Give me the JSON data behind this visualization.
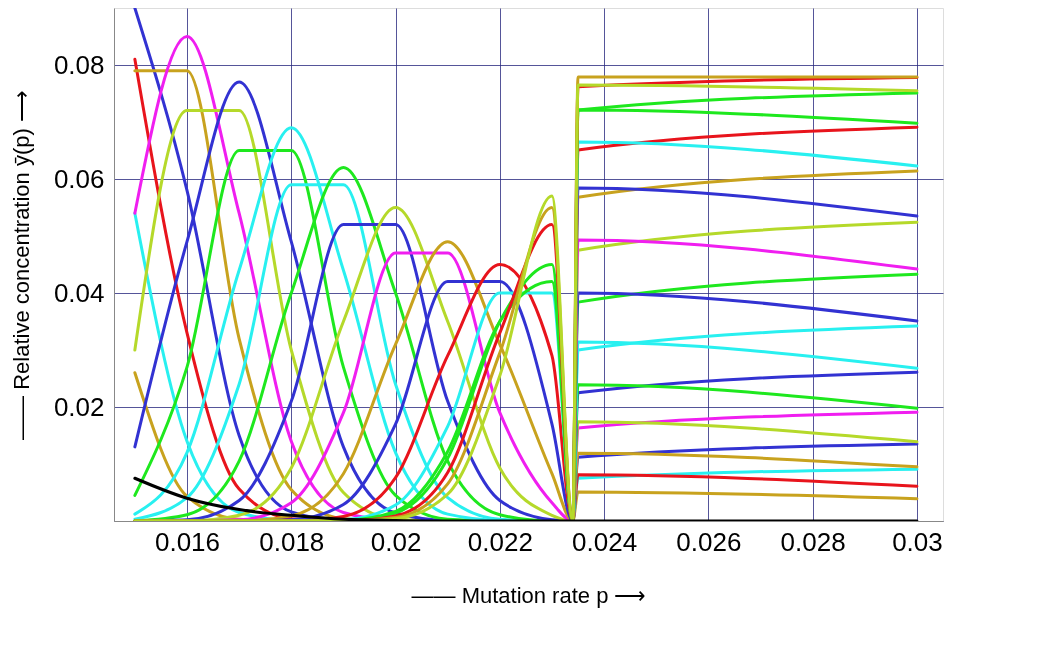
{
  "chart_data": {
    "type": "line",
    "xlabel": "—— Mutation rate  p  ⟶",
    "ylabel": "—— Relative concentration  ȳ(p)  ⟶",
    "x": [
      0.015,
      0.016,
      0.017,
      0.018,
      0.019,
      0.02,
      0.021,
      0.022,
      0.023,
      0.0234,
      0.0235,
      0.03
    ],
    "xlim": [
      0.0146,
      0.0305
    ],
    "xticks": [
      0.016,
      0.018,
      0.02,
      0.022,
      0.024,
      0.026,
      0.028,
      0.03
    ],
    "ylim": [
      0,
      0.09
    ],
    "yticks": [
      {
        "value": 0,
        "label": null
      },
      0.02,
      0.04,
      0.06,
      0.08
    ],
    "grid": true,
    "legend": false,
    "series": [
      {
        "color": "#c8a21e",
        "values": [
          0.026,
          0.0043,
          0.0003,
          0,
          0,
          0,
          0,
          0,
          0,
          0,
          0.0051,
          0.0039
        ]
      },
      {
        "color": "#28f0f0",
        "values": [
          0.054,
          0.014,
          0.0015,
          0.0001,
          0,
          0,
          0,
          0,
          0,
          0,
          0.0075,
          0.0091
        ]
      },
      {
        "color": "#e8141c",
        "values": [
          0.081,
          0.033,
          0.0056,
          0.0004,
          0,
          0,
          0,
          0,
          0,
          0,
          0.0081,
          0.0061
        ]
      },
      {
        "color": "#3232d2",
        "values": [
          0.09,
          0.058,
          0.015,
          0.0016,
          0.0001,
          0,
          0,
          0,
          0,
          0,
          0.0112,
          0.0135
        ]
      },
      {
        "color": "#c8a21e",
        "values": [
          0.079,
          0.079,
          0.032,
          0.0055,
          0.0004,
          0,
          0,
          0,
          0,
          0,
          0.0119,
          0.0095
        ]
      },
      {
        "color": "#f01ef0",
        "values": [
          0.054,
          0.085,
          0.054,
          0.014,
          0.0015,
          0.0001,
          0,
          0,
          0,
          0,
          0.0163,
          0.0191
        ]
      },
      {
        "color": "#b5d92a",
        "values": [
          0.03,
          0.072,
          0.072,
          0.03,
          0.005,
          0.0003,
          0,
          0,
          0,
          0,
          0.0174,
          0.0139
        ]
      },
      {
        "color": "#3232d2",
        "values": [
          0.013,
          0.049,
          0.077,
          0.049,
          0.013,
          0.0014,
          0.0001,
          0,
          0,
          0,
          0.0225,
          0.0261
        ]
      },
      {
        "color": "#1ee81e",
        "values": [
          0.0045,
          0.027,
          0.065,
          0.065,
          0.027,
          0.0045,
          0.0003,
          0,
          0,
          0,
          0.0239,
          0.0198
        ]
      },
      {
        "color": "#28f0f0",
        "values": [
          0.0012,
          0.012,
          0.044,
          0.069,
          0.044,
          0.012,
          0.0012,
          0.0001,
          0,
          0,
          0.03,
          0.0342
        ]
      },
      {
        "color": "#28f0f0",
        "values": [
          0.0003,
          0.0041,
          0.024,
          0.059,
          0.059,
          0.024,
          0.0041,
          0.0003,
          0,
          0,
          0.0314,
          0.0268
        ]
      },
      {
        "color": "#1ee81e",
        "values": [
          0,
          0.0011,
          0.0105,
          0.04,
          0.062,
          0.04,
          0.0105,
          0.0011,
          0,
          0,
          0.0384,
          0.0433
        ]
      },
      {
        "color": "#3232d2",
        "values": [
          0,
          0.0002,
          0.0036,
          0.021,
          0.052,
          0.052,
          0.021,
          0.0036,
          0.0002,
          0,
          0.04,
          0.0351
        ]
      },
      {
        "color": "#b5d92a",
        "values": [
          0,
          0,
          0.001,
          0.0093,
          0.035,
          0.055,
          0.035,
          0.0093,
          0.001,
          0,
          0.0475,
          0.0524
        ]
      },
      {
        "color": "#f01ef0",
        "values": [
          0,
          0,
          0.0002,
          0.0032,
          0.019,
          0.047,
          0.047,
          0.019,
          0.0032,
          0,
          0.0493,
          0.0442
        ]
      },
      {
        "color": "#c8a21e",
        "values": [
          0,
          0,
          0,
          0.0009,
          0.0083,
          0.031,
          0.049,
          0.031,
          0.0083,
          0,
          0.0568,
          0.0614
        ]
      },
      {
        "color": "#3232d2",
        "values": [
          0,
          0,
          0,
          0.0002,
          0.0029,
          0.017,
          0.042,
          0.042,
          0.017,
          0,
          0.0584,
          0.0535
        ]
      },
      {
        "color": "#e8141c",
        "values": [
          0,
          0,
          0,
          0,
          0.0008,
          0.0076,
          0.029,
          0.045,
          0.029,
          0,
          0.0651,
          0.0691
        ]
      },
      {
        "color": "#28f0f0",
        "values": [
          0,
          0,
          0,
          0,
          0.0002,
          0.0028,
          0.0166,
          0.04,
          0.04,
          0,
          0.0665,
          0.0623
        ]
      },
      {
        "color": "#1ee81e",
        "values": [
          0,
          0,
          0,
          0,
          0.0001,
          0.0017,
          0.0122,
          0.035,
          0.042,
          0,
          0.0721,
          0.0751
        ]
      },
      {
        "color": "#1ee81e",
        "values": [
          0,
          0,
          0,
          0,
          0,
          0.0014,
          0.011,
          0.035,
          0.045,
          0,
          0.0721,
          0.0698
        ]
      },
      {
        "color": "#e8141c",
        "values": [
          0,
          0,
          0,
          0,
          0,
          0.0009,
          0.0085,
          0.033,
          0.052,
          0,
          0.0762,
          0.0778
        ]
      },
      {
        "color": "#c8a21e",
        "values": [
          0,
          0,
          0,
          0,
          0,
          0.0006,
          0.0065,
          0.0295,
          0.055,
          0,
          0.0779,
          0.0779
        ]
      },
      {
        "color": "#b5d92a",
        "values": [
          0,
          0,
          0,
          0,
          0,
          0.0004,
          0.0047,
          0.0255,
          0.057,
          0,
          0.0765,
          0.0755
        ]
      },
      {
        "color": "#000000",
        "values": [
          0.0075,
          0.004,
          0.002,
          0.001,
          0.0003,
          0.0001,
          0,
          0,
          0,
          0,
          0,
          0
        ]
      }
    ]
  }
}
